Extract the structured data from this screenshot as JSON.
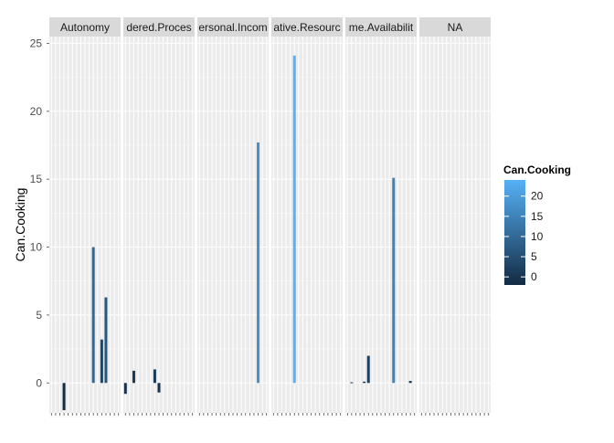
{
  "chart_data": {
    "type": "bar",
    "ylabel": "Can.Cooking",
    "xlabel": "",
    "ylim": [
      -2.2,
      25.5
    ],
    "yticks": [
      0,
      5,
      10,
      15,
      20,
      25
    ],
    "grid": true,
    "legend_position": "right",
    "legend": {
      "title": "Can.Cooking",
      "ticks": [
        0,
        5,
        10,
        15,
        20
      ],
      "range": [
        -2,
        24
      ],
      "colors": {
        "low": "#132b43",
        "high": "#56b1f7"
      }
    },
    "facets": [
      {
        "label": "Autonomy",
        "bars": [
          {
            "slot": 3,
            "value": -2
          },
          {
            "slot": 10,
            "value": 10
          },
          {
            "slot": 12,
            "value": 3.2
          },
          {
            "slot": 13,
            "value": 6.3
          }
        ]
      },
      {
        "label": "dered.Proces",
        "bars": [
          {
            "slot": 0,
            "value": -0.8
          },
          {
            "slot": 2,
            "value": 0.9
          },
          {
            "slot": 7,
            "value": 1
          },
          {
            "slot": 8,
            "value": -0.7
          }
        ]
      },
      {
        "label": "ersonal.Incom",
        "bars": [
          {
            "slot": 14,
            "value": 17.7
          }
        ]
      },
      {
        "label": "ative.Resourc",
        "bars": [
          {
            "slot": 5,
            "value": 24.1
          }
        ]
      },
      {
        "label": "me.Availabilit",
        "bars": [
          {
            "slot": 1,
            "value": 0.05
          },
          {
            "slot": 4,
            "value": 0.1
          },
          {
            "slot": 5,
            "value": 2
          },
          {
            "slot": 11,
            "value": 15.1
          },
          {
            "slot": 15,
            "value": 0.15
          }
        ]
      },
      {
        "label": "NA",
        "bars": []
      }
    ],
    "slots_per_panel": 17
  }
}
